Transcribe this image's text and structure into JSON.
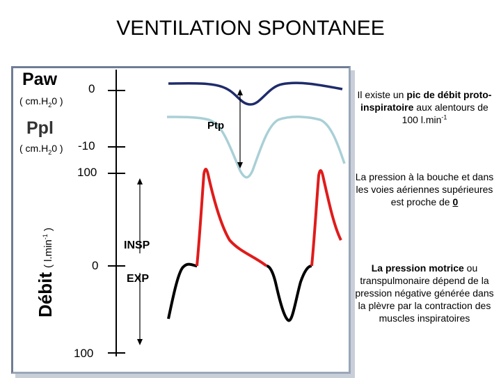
{
  "title": "VENTILATION SPONTANEE",
  "paw": {
    "label": "Paw",
    "unit_pre": "( cm.H",
    "unit_sub": "2",
    "unit_post": "0 )"
  },
  "ppl": {
    "label": "Ppl",
    "unit_pre": "( cm.H",
    "unit_sub": "2",
    "unit_post": "0 )"
  },
  "ticks": {
    "zero_top": "0",
    "minus_ten": "-10",
    "hundred_top": "100",
    "zero_flow": "0",
    "hundred_bottom": "100"
  },
  "debit": {
    "label": "Débit",
    "unit_pre": "( l.min",
    "unit_sup": "-1",
    "unit_post": " )"
  },
  "annotations": {
    "ptp": "Ptp",
    "insp": "INSP",
    "exp": "EXP"
  },
  "notes": {
    "note1": {
      "pre": "Il existe un ",
      "bold": "pic de débit proto-inspiratoire",
      "post": " aux alentours de 100 l.min",
      "sup": "-1"
    },
    "note2": {
      "pre": "La pression à la bouche et dans les voies aériennes supérieures est proche de ",
      "bold": "0"
    },
    "note3": {
      "bold": "La pression motrice",
      "post": " ou transpulmonaire dépend de la pression négative générée dans la plèvre par la contraction des muscles inspiratoires"
    }
  },
  "colors": {
    "paw_curve": "#1f2b6b",
    "ppl_curve": "#a9d0d6",
    "insp_flow": "#e01b1b",
    "exp_flow": "#000000",
    "panel_border": "#6f7d95"
  }
}
